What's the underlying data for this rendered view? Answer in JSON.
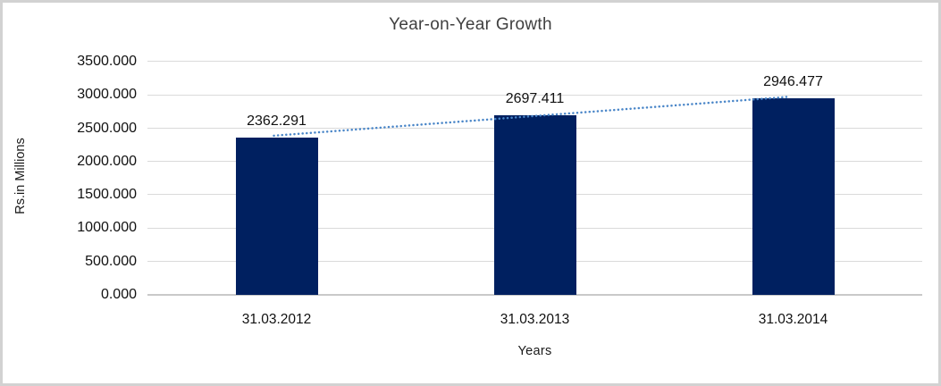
{
  "chart_data": {
    "type": "bar",
    "title": "Year-on-Year Growth",
    "categories": [
      "31.03.2012",
      "31.03.2013",
      "31.03.2014"
    ],
    "values": [
      2362.291,
      2697.411,
      2946.477
    ],
    "data_labels": [
      "2362.291",
      "2697.411",
      "2946.477"
    ],
    "xlabel": "Years",
    "ylabel": "Rs.in Millions",
    "ylim": [
      0,
      3500
    ],
    "ytick_step": 500,
    "ytick_labels": [
      "0.000",
      "500.000",
      "1000.000",
      "1500.000",
      "2000.000",
      "2500.000",
      "3000.000",
      "3500.000"
    ],
    "grid": true,
    "legend": false,
    "bar_color": "#002060",
    "trendline": {
      "type": "linear",
      "style": "dotted",
      "color": "#4a86c8"
    },
    "gridline_color": "#dadada",
    "frame_border_color": "#d2d2d2"
  }
}
